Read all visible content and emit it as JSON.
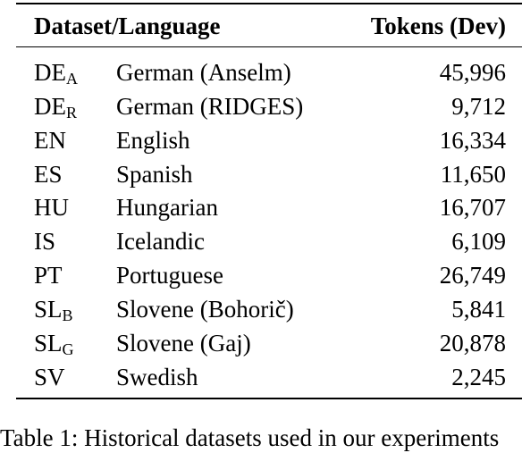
{
  "table": {
    "headers": {
      "dataset_language": "Dataset/Language",
      "tokens": "Tokens (Dev)"
    },
    "rows": [
      {
        "code": "DE",
        "sub": "A",
        "language": "German (Anselm)",
        "tokens": "45,996"
      },
      {
        "code": "DE",
        "sub": "R",
        "language": "German (RIDGES)",
        "tokens": "9,712"
      },
      {
        "code": "EN",
        "sub": "",
        "language": "English",
        "tokens": "16,334"
      },
      {
        "code": "ES",
        "sub": "",
        "language": "Spanish",
        "tokens": "11,650"
      },
      {
        "code": "HU",
        "sub": "",
        "language": "Hungarian",
        "tokens": "16,707"
      },
      {
        "code": "IS",
        "sub": "",
        "language": "Icelandic",
        "tokens": "6,109"
      },
      {
        "code": "PT",
        "sub": "",
        "language": "Portuguese",
        "tokens": "26,749"
      },
      {
        "code": "SL",
        "sub": "B",
        "language": "Slovene (Bohorič)",
        "tokens": "5,841"
      },
      {
        "code": "SL",
        "sub": "G",
        "language": "Slovene (Gaj)",
        "tokens": "20,878"
      },
      {
        "code": "SV",
        "sub": "",
        "language": "Swedish",
        "tokens": "2,245"
      }
    ]
  },
  "caption": "Table 1:  Historical datasets used in our experiments"
}
